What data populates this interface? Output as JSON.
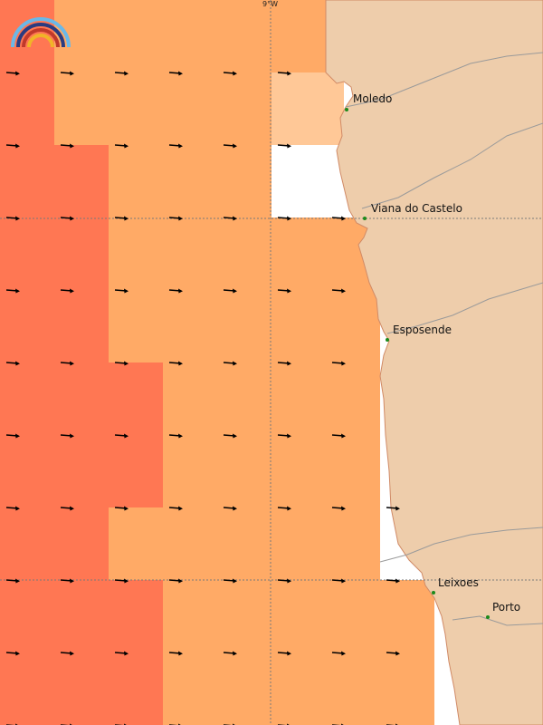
{
  "map": {
    "longitude_label": "9°W",
    "colors": {
      "sea_dark": "#ff7753",
      "sea_mid": "#ffaa66",
      "sea_light": "#ffc897",
      "land": "#eecdab",
      "coast_line": "#d08a66",
      "grid_line": "#7a7a7a",
      "arrow": "#000000",
      "town_marker": "#1b8a1b"
    },
    "places": [
      {
        "name": "Moledo"
      },
      {
        "name": "Viana do Castelo"
      },
      {
        "name": "Esposende"
      },
      {
        "name": "Leixoes"
      },
      {
        "name": "Porto"
      }
    ],
    "logo": {
      "icon": "rainbow-logo-icon"
    }
  }
}
